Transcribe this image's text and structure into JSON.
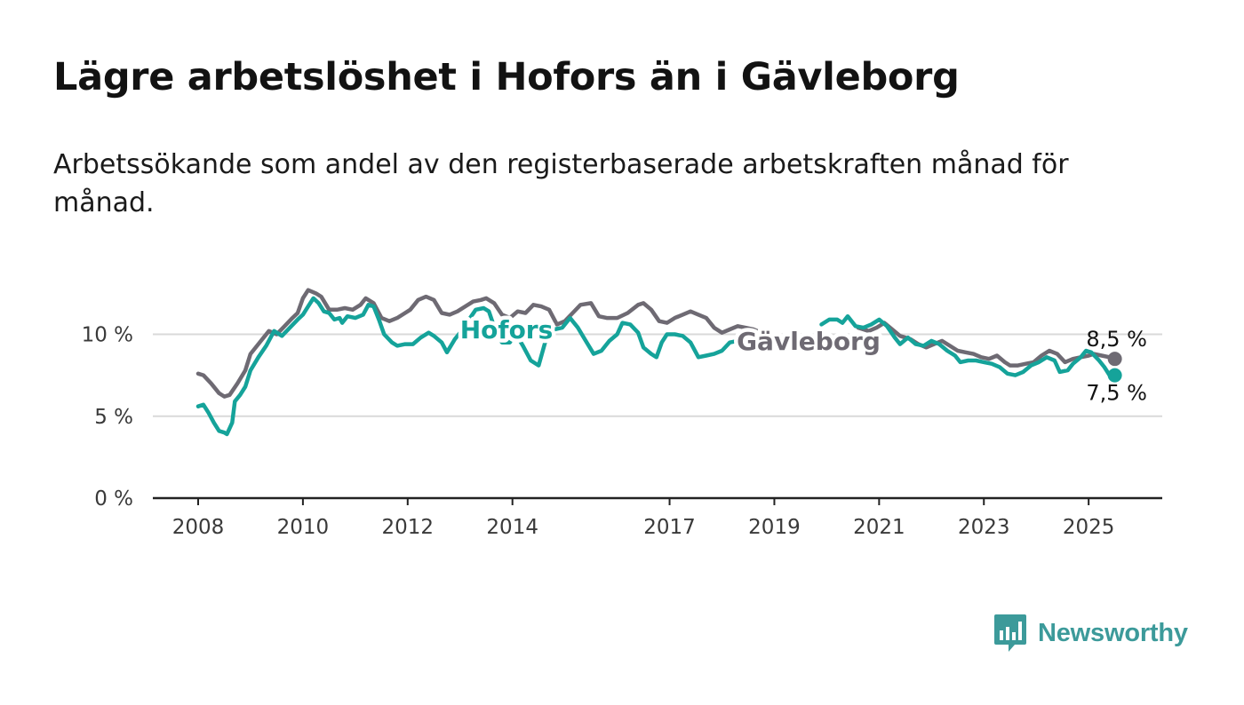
{
  "title": "Lägre arbetslöshet i Hofors än i Gävleborg",
  "subtitle": "Arbetssökande som andel av den registerbaserade arbetskraften månad för månad.",
  "brand": {
    "name": "Newsworthy",
    "icon": "bar-chart-speech-bubble-icon"
  },
  "colors": {
    "hofors": "#15a39a",
    "gavleborg": "#6e6a73",
    "grid": "#d9d9d9",
    "axis": "#222222",
    "brand": "#3c9a9a"
  },
  "chart_data": {
    "type": "line",
    "x_unit": "year",
    "xlim": [
      2007.4,
      2026.35
    ],
    "ylim": [
      0,
      12.5
    ],
    "yticks": [
      0,
      5,
      10
    ],
    "ytick_labels": [
      "0 %",
      "5 %",
      "10 %"
    ],
    "xticks": [
      2008,
      2010,
      2012,
      2014,
      2017,
      2019,
      2021,
      2023,
      2025
    ],
    "xtick_labels": [
      "2008",
      "2010",
      "2012",
      "2014",
      "2017",
      "2019",
      "2021",
      "2023",
      "2025"
    ],
    "grid": true,
    "series": [
      {
        "name": "Gävleborg",
        "color": "#6e6a73",
        "end_label": "8,5 %",
        "points": [
          [
            2008.0,
            7.6
          ],
          [
            2008.1,
            7.5
          ],
          [
            2008.25,
            7.0
          ],
          [
            2008.4,
            6.4
          ],
          [
            2008.5,
            6.2
          ],
          [
            2008.6,
            6.3
          ],
          [
            2008.75,
            7.0
          ],
          [
            2008.9,
            7.8
          ],
          [
            2009.0,
            8.8
          ],
          [
            2009.2,
            9.6
          ],
          [
            2009.35,
            10.2
          ],
          [
            2009.5,
            10.0
          ],
          [
            2009.65,
            10.5
          ],
          [
            2009.8,
            11.0
          ],
          [
            2009.9,
            11.3
          ],
          [
            2010.0,
            12.2
          ],
          [
            2010.1,
            12.7
          ],
          [
            2010.25,
            12.5
          ],
          [
            2010.35,
            12.3
          ],
          [
            2010.5,
            11.5
          ],
          [
            2010.65,
            11.5
          ],
          [
            2010.8,
            11.6
          ],
          [
            2010.95,
            11.5
          ],
          [
            2011.1,
            11.8
          ],
          [
            2011.2,
            12.2
          ],
          [
            2011.35,
            11.9
          ],
          [
            2011.5,
            11.0
          ],
          [
            2011.65,
            10.8
          ],
          [
            2011.8,
            11.0
          ],
          [
            2011.95,
            11.3
          ],
          [
            2012.05,
            11.5
          ],
          [
            2012.2,
            12.1
          ],
          [
            2012.35,
            12.3
          ],
          [
            2012.5,
            12.1
          ],
          [
            2012.65,
            11.3
          ],
          [
            2012.8,
            11.2
          ],
          [
            2012.95,
            11.4
          ],
          [
            2013.1,
            11.7
          ],
          [
            2013.25,
            12.0
          ],
          [
            2013.4,
            12.1
          ],
          [
            2013.5,
            12.2
          ],
          [
            2013.65,
            11.9
          ],
          [
            2013.8,
            11.2
          ],
          [
            2013.95,
            11.0
          ],
          [
            2014.1,
            11.4
          ],
          [
            2014.25,
            11.3
          ],
          [
            2014.4,
            11.8
          ],
          [
            2014.55,
            11.7
          ],
          [
            2014.7,
            11.5
          ],
          [
            2014.85,
            10.6
          ],
          [
            2015.0,
            10.8
          ],
          [
            2015.15,
            11.3
          ],
          [
            2015.3,
            11.8
          ],
          [
            2015.5,
            11.9
          ],
          [
            2015.65,
            11.1
          ],
          [
            2015.8,
            11.0
          ],
          [
            2016.0,
            11.0
          ],
          [
            2016.2,
            11.3
          ],
          [
            2016.4,
            11.8
          ],
          [
            2016.5,
            11.9
          ],
          [
            2016.65,
            11.5
          ],
          [
            2016.8,
            10.8
          ],
          [
            2016.95,
            10.7
          ],
          [
            2017.1,
            11.0
          ],
          [
            2017.25,
            11.2
          ],
          [
            2017.4,
            11.4
          ],
          [
            2017.55,
            11.2
          ],
          [
            2017.7,
            11.0
          ],
          [
            2017.85,
            10.4
          ],
          [
            2018.0,
            10.1
          ],
          [
            2018.15,
            10.3
          ],
          [
            2018.3,
            10.5
          ],
          [
            2018.45,
            10.4
          ],
          [
            2018.6,
            10.3
          ],
          [
            2018.75,
            10.1
          ],
          [
            2018.85,
            9.8
          ]
        ],
        "points_2": [
          [
            2020.6,
            10.4
          ],
          [
            2020.8,
            10.2
          ],
          [
            2020.95,
            10.4
          ],
          [
            2021.1,
            10.7
          ],
          [
            2021.25,
            10.3
          ],
          [
            2021.4,
            9.9
          ],
          [
            2021.6,
            9.7
          ],
          [
            2021.75,
            9.4
          ],
          [
            2021.9,
            9.2
          ],
          [
            2022.05,
            9.4
          ],
          [
            2022.2,
            9.6
          ],
          [
            2022.35,
            9.3
          ],
          [
            2022.5,
            9.0
          ],
          [
            2022.65,
            8.9
          ],
          [
            2022.8,
            8.8
          ],
          [
            2022.95,
            8.6
          ],
          [
            2023.1,
            8.5
          ],
          [
            2023.25,
            8.7
          ],
          [
            2023.4,
            8.3
          ],
          [
            2023.5,
            8.1
          ],
          [
            2023.65,
            8.1
          ],
          [
            2023.8,
            8.2
          ],
          [
            2023.95,
            8.3
          ],
          [
            2024.1,
            8.7
          ],
          [
            2024.25,
            9.0
          ],
          [
            2024.4,
            8.8
          ],
          [
            2024.55,
            8.3
          ],
          [
            2024.7,
            8.5
          ],
          [
            2024.85,
            8.6
          ],
          [
            2025.0,
            8.7
          ],
          [
            2025.1,
            8.8
          ],
          [
            2025.25,
            8.7
          ],
          [
            2025.4,
            8.6
          ],
          [
            2025.5,
            8.5
          ]
        ]
      },
      {
        "name": "Hofors",
        "color": "#15a39a",
        "end_label": "7,5 %",
        "points": [
          [
            2008.0,
            5.6
          ],
          [
            2008.1,
            5.7
          ],
          [
            2008.2,
            5.2
          ],
          [
            2008.3,
            4.6
          ],
          [
            2008.4,
            4.1
          ],
          [
            2008.5,
            4.0
          ],
          [
            2008.55,
            3.9
          ],
          [
            2008.65,
            4.6
          ],
          [
            2008.7,
            5.9
          ],
          [
            2008.8,
            6.3
          ],
          [
            2008.9,
            6.8
          ],
          [
            2009.0,
            7.8
          ],
          [
            2009.15,
            8.6
          ],
          [
            2009.3,
            9.3
          ],
          [
            2009.45,
            10.2
          ],
          [
            2009.6,
            9.9
          ],
          [
            2009.75,
            10.4
          ],
          [
            2009.9,
            10.9
          ],
          [
            2010.0,
            11.2
          ],
          [
            2010.1,
            11.7
          ],
          [
            2010.2,
            12.2
          ],
          [
            2010.3,
            11.9
          ],
          [
            2010.4,
            11.4
          ],
          [
            2010.5,
            11.3
          ],
          [
            2010.6,
            10.9
          ],
          [
            2010.7,
            11.0
          ],
          [
            2010.75,
            10.7
          ],
          [
            2010.85,
            11.1
          ],
          [
            2011.0,
            11.0
          ],
          [
            2011.15,
            11.2
          ],
          [
            2011.25,
            11.8
          ],
          [
            2011.35,
            11.7
          ],
          [
            2011.45,
            10.9
          ],
          [
            2011.55,
            10.0
          ],
          [
            2011.7,
            9.5
          ],
          [
            2011.8,
            9.3
          ],
          [
            2011.95,
            9.4
          ],
          [
            2012.1,
            9.4
          ],
          [
            2012.25,
            9.8
          ],
          [
            2012.4,
            10.1
          ],
          [
            2012.5,
            9.9
          ],
          [
            2012.65,
            9.5
          ],
          [
            2012.75,
            8.9
          ],
          [
            2012.9,
            9.7
          ],
          [
            2013.05,
            10.3
          ],
          [
            2013.15,
            10.8
          ],
          [
            2013.3,
            11.5
          ],
          [
            2013.45,
            11.6
          ],
          [
            2013.55,
            11.4
          ],
          [
            2013.7,
            10.0
          ],
          [
            2013.8,
            9.5
          ],
          [
            2013.95,
            9.5
          ],
          [
            2014.05,
            10.1
          ],
          [
            2014.2,
            9.3
          ],
          [
            2014.35,
            8.4
          ],
          [
            2014.5,
            8.1
          ],
          [
            2014.65,
            9.8
          ],
          [
            2014.8,
            10.3
          ],
          [
            2014.95,
            10.4
          ],
          [
            2015.1,
            11.0
          ],
          [
            2015.25,
            10.4
          ],
          [
            2015.4,
            9.6
          ],
          [
            2015.55,
            8.8
          ],
          [
            2015.7,
            9.0
          ],
          [
            2015.85,
            9.6
          ],
          [
            2016.0,
            10.0
          ],
          [
            2016.1,
            10.7
          ],
          [
            2016.25,
            10.6
          ],
          [
            2016.4,
            10.1
          ],
          [
            2016.5,
            9.2
          ],
          [
            2016.65,
            8.8
          ],
          [
            2016.75,
            8.6
          ],
          [
            2016.85,
            9.5
          ],
          [
            2016.95,
            10.0
          ],
          [
            2017.1,
            10.0
          ],
          [
            2017.25,
            9.9
          ],
          [
            2017.4,
            9.5
          ],
          [
            2017.55,
            8.6
          ],
          [
            2017.7,
            8.7
          ],
          [
            2017.85,
            8.8
          ],
          [
            2018.0,
            9.0
          ],
          [
            2018.15,
            9.5
          ],
          [
            2018.3,
            9.6
          ],
          [
            2018.45,
            9.3
          ],
          [
            2018.55,
            9.0
          ]
        ],
        "points_2": [
          [
            2019.9,
            10.6
          ],
          [
            2020.05,
            10.9
          ],
          [
            2020.2,
            10.9
          ],
          [
            2020.3,
            10.7
          ],
          [
            2020.4,
            11.1
          ],
          [
            2020.55,
            10.5
          ],
          [
            2020.7,
            10.4
          ],
          [
            2020.85,
            10.6
          ],
          [
            2021.0,
            10.9
          ],
          [
            2021.15,
            10.5
          ],
          [
            2021.3,
            9.8
          ],
          [
            2021.4,
            9.4
          ],
          [
            2021.55,
            9.8
          ],
          [
            2021.7,
            9.4
          ],
          [
            2021.85,
            9.3
          ],
          [
            2022.0,
            9.6
          ],
          [
            2022.15,
            9.4
          ],
          [
            2022.3,
            9.0
          ],
          [
            2022.45,
            8.7
          ],
          [
            2022.55,
            8.3
          ],
          [
            2022.7,
            8.4
          ],
          [
            2022.85,
            8.4
          ],
          [
            2023.0,
            8.3
          ],
          [
            2023.15,
            8.2
          ],
          [
            2023.3,
            8.0
          ],
          [
            2023.45,
            7.6
          ],
          [
            2023.6,
            7.5
          ],
          [
            2023.75,
            7.7
          ],
          [
            2023.9,
            8.1
          ],
          [
            2024.05,
            8.3
          ],
          [
            2024.2,
            8.6
          ],
          [
            2024.35,
            8.4
          ],
          [
            2024.45,
            7.7
          ],
          [
            2024.6,
            7.8
          ],
          [
            2024.7,
            8.2
          ],
          [
            2024.85,
            8.6
          ],
          [
            2024.95,
            9.0
          ],
          [
            2025.05,
            8.9
          ],
          [
            2025.2,
            8.4
          ],
          [
            2025.3,
            8.0
          ],
          [
            2025.4,
            7.5
          ],
          [
            2025.5,
            7.5
          ]
        ]
      }
    ]
  }
}
